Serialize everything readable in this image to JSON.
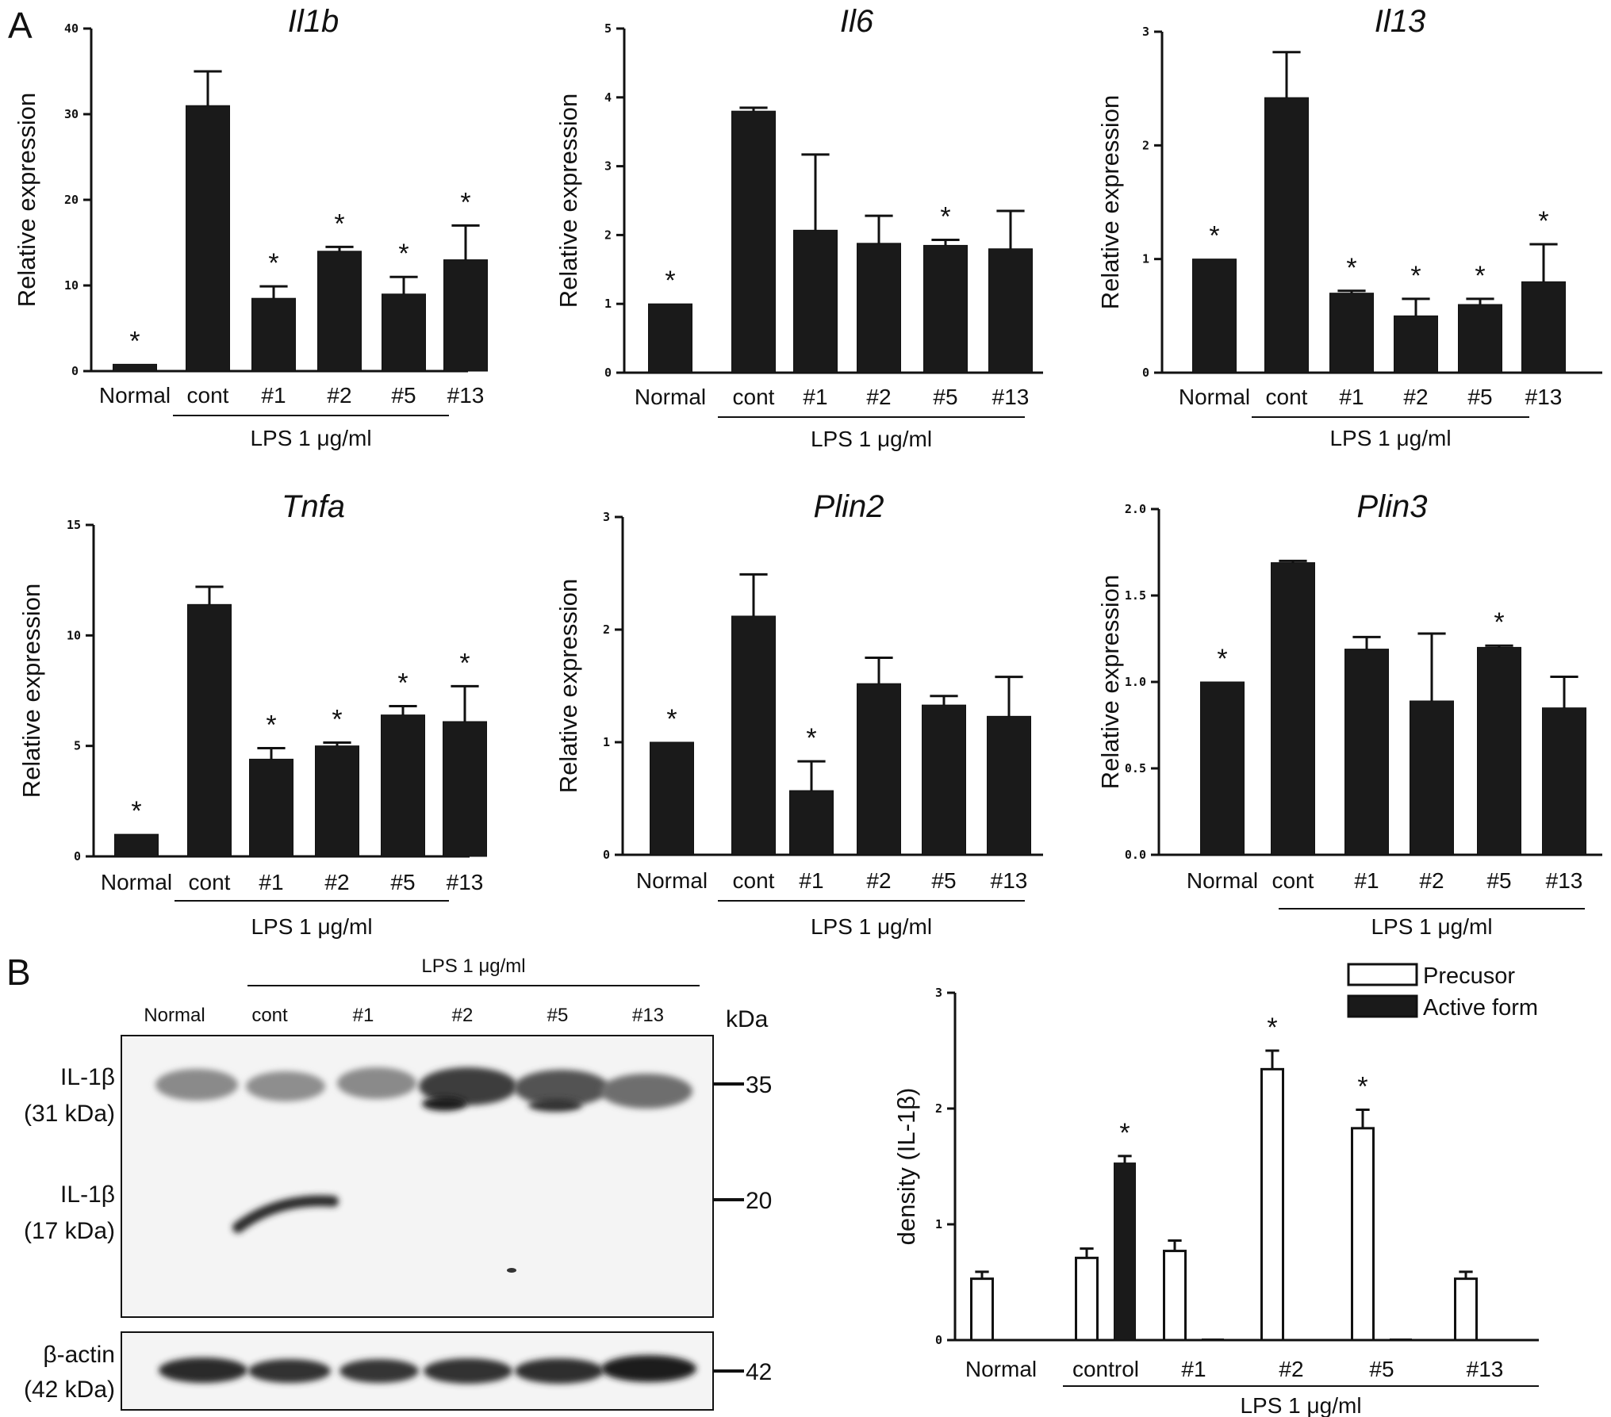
{
  "panels": {
    "a": "A",
    "b": "B"
  },
  "chart_data": [
    {
      "id": "il1b",
      "type": "bar",
      "title": "Il1b",
      "ylabel": "Relative expression",
      "categories": [
        "Normal",
        "cont",
        "#1",
        "#2",
        "#5",
        "#13"
      ],
      "group_label": "LPS 1 μg/ml",
      "ylim": [
        0,
        40
      ],
      "yticks": [
        "0",
        "10",
        "20",
        "30",
        "40"
      ],
      "values": [
        0.8,
        31,
        8.5,
        14,
        9,
        13
      ],
      "errors": [
        0,
        4,
        1.4,
        0.5,
        2,
        4
      ],
      "significant": [
        true,
        false,
        true,
        true,
        true,
        true
      ]
    },
    {
      "id": "il6",
      "type": "bar",
      "title": "Il6",
      "ylabel": "Relative expression",
      "categories": [
        "Normal",
        "cont",
        "#1",
        "#2",
        "#5",
        "#13"
      ],
      "group_label": "LPS 1 μg/ml",
      "ylim": [
        0,
        5
      ],
      "yticks": [
        "0",
        "1",
        "2",
        "3",
        "4",
        "5"
      ],
      "values": [
        1.0,
        3.8,
        2.07,
        1.88,
        1.85,
        1.8
      ],
      "errors": [
        0,
        0.05,
        1.1,
        0.4,
        0.08,
        0.55
      ],
      "significant": [
        true,
        false,
        false,
        false,
        true,
        false
      ]
    },
    {
      "id": "il13",
      "type": "bar",
      "title": "Il13",
      "ylabel": "Relative expression",
      "categories": [
        "Normal",
        "cont",
        "#1",
        "#2",
        "#5",
        "#13"
      ],
      "group_label": "LPS 1 μg/ml",
      "ylim": [
        0,
        3
      ],
      "yticks": [
        "0",
        "1",
        "2",
        "3"
      ],
      "values": [
        1.0,
        2.42,
        0.7,
        0.5,
        0.6,
        0.8
      ],
      "errors": [
        0,
        0.4,
        0.02,
        0.15,
        0.05,
        0.33
      ],
      "significant": [
        true,
        false,
        true,
        true,
        true,
        true
      ]
    },
    {
      "id": "tnfa",
      "type": "bar",
      "title": "Tnfa",
      "ylabel": "Relative expression",
      "categories": [
        "Normal",
        "cont",
        "#1",
        "#2",
        "#5",
        "#13"
      ],
      "group_label": "LPS 1 μg/ml",
      "ylim": [
        0,
        15
      ],
      "yticks": [
        "0",
        "5",
        "10",
        "15"
      ],
      "values": [
        1.0,
        11.4,
        4.4,
        5.0,
        6.4,
        6.1
      ],
      "errors": [
        0,
        0.8,
        0.5,
        0.15,
        0.4,
        1.6
      ],
      "significant": [
        true,
        false,
        true,
        true,
        true,
        true
      ]
    },
    {
      "id": "plin2",
      "type": "bar",
      "title": "Plin2",
      "ylabel": "Relative expression",
      "categories": [
        "Normal",
        "cont",
        "#1",
        "#2",
        "#5",
        "#13"
      ],
      "group_label": "LPS 1 μg/ml",
      "ylim": [
        0,
        3
      ],
      "yticks": [
        "0",
        "1",
        "2",
        "3"
      ],
      "values": [
        1.0,
        2.12,
        0.57,
        1.52,
        1.33,
        1.23
      ],
      "errors": [
        0,
        0.37,
        0.26,
        0.23,
        0.08,
        0.35
      ],
      "significant": [
        true,
        false,
        true,
        false,
        false,
        false
      ]
    },
    {
      "id": "plin3",
      "type": "bar",
      "title": "Plin3",
      "ylabel": "Relative expression",
      "categories": [
        "Normal",
        "cont",
        "#1",
        "#2",
        "#5",
        "#13"
      ],
      "group_label": "LPS 1 μg/ml",
      "ylim": [
        0,
        2
      ],
      "yticks": [
        "0.0",
        "0.5",
        "1.0",
        "1.5",
        "2.0"
      ],
      "values": [
        1.0,
        1.69,
        1.19,
        0.89,
        1.2,
        0.85
      ],
      "errors": [
        0,
        0.01,
        0.07,
        0.39,
        0.01,
        0.18
      ],
      "significant": [
        true,
        false,
        false,
        false,
        true,
        false
      ]
    },
    {
      "id": "density",
      "type": "bar",
      "title": "",
      "ylabel": "density (IL-1β)",
      "categories": [
        "Normal",
        "control",
        "#1",
        "#2",
        "#5",
        "#13"
      ],
      "group_label": "LPS 1 μg/ml",
      "ylim": [
        0,
        3
      ],
      "yticks": [
        "0",
        "1",
        "2",
        "3"
      ],
      "legend": "top-right",
      "series": [
        {
          "name": "Precusor",
          "color": "#ffffff",
          "values": [
            0.53,
            0.71,
            0.77,
            2.34,
            1.83,
            0.53
          ],
          "errors": [
            0.06,
            0.08,
            0.09,
            0.16,
            0.16,
            0.06
          ],
          "significant": [
            false,
            false,
            false,
            true,
            true,
            false
          ]
        },
        {
          "name": "Active form",
          "color": "#1a1a1a",
          "values": [
            0.0,
            1.53,
            0.01,
            0.0,
            0.01,
            0.0
          ],
          "errors": [
            0,
            0.06,
            0,
            0,
            0,
            0
          ],
          "significant": [
            false,
            true,
            false,
            false,
            false,
            false
          ]
        }
      ]
    }
  ],
  "blot": {
    "group_label": "LPS 1 μg/ml",
    "lanes": [
      "Normal",
      "cont",
      "#1",
      "#2",
      "#5",
      "#13"
    ],
    "unit": "kDa",
    "markers": [
      "35",
      "20",
      "42"
    ],
    "row_labels": {
      "il1b_precursor": [
        "IL-1β",
        "(31 kDa)"
      ],
      "il1b_active": [
        "IL-1β",
        "(17 kDa)"
      ],
      "actin": [
        "β-actin",
        "(42 kDa)"
      ]
    }
  },
  "colors": {
    "bar": "#1a1a1a",
    "axis": "#111111",
    "blot_bg": "#f4f4f4"
  }
}
